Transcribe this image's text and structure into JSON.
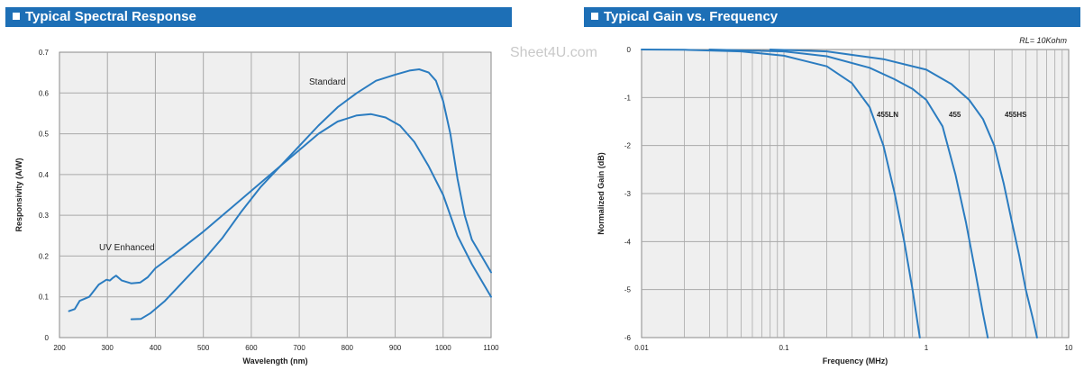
{
  "charts": [
    {
      "header": "Typical Spectral Response"
    },
    {
      "header": "Typical Gain vs. Frequency"
    }
  ],
  "watermark": "Sheet4U.com",
  "colors": {
    "header_bg": "#1d6fb6",
    "curve": "#2b7cc0",
    "plot_bg": "#efefef",
    "grid": "#a9a9a9"
  },
  "chart_data": [
    {
      "type": "line",
      "title": "Typical Spectral Response",
      "xlabel": "Wavelength (nm)",
      "ylabel": "Responsivity (A/W)",
      "xlim": [
        200,
        1100
      ],
      "ylim": [
        0,
        0.7
      ],
      "xticks": [
        200,
        300,
        400,
        500,
        600,
        700,
        800,
        900,
        1000,
        1100
      ],
      "yticks": [
        0,
        0.1,
        0.2,
        0.3,
        0.4,
        0.5,
        0.6,
        0.7
      ],
      "grid": true,
      "series": [
        {
          "name": "UV Enhanced",
          "points": [
            [
              220,
              0.065
            ],
            [
              232,
              0.07
            ],
            [
              242,
              0.09
            ],
            [
              262,
              0.1
            ],
            [
              282,
              0.13
            ],
            [
              298,
              0.142
            ],
            [
              305,
              0.14
            ],
            [
              312,
              0.147
            ],
            [
              318,
              0.152
            ],
            [
              330,
              0.14
            ],
            [
              350,
              0.133
            ],
            [
              368,
              0.135
            ],
            [
              384,
              0.148
            ],
            [
              400,
              0.17
            ],
            [
              440,
              0.205
            ],
            [
              500,
              0.26
            ],
            [
              560,
              0.32
            ],
            [
              620,
              0.38
            ],
            [
              660,
              0.42
            ],
            [
              700,
              0.46
            ],
            [
              740,
              0.5
            ],
            [
              780,
              0.53
            ],
            [
              820,
              0.545
            ],
            [
              850,
              0.548
            ],
            [
              880,
              0.54
            ],
            [
              910,
              0.52
            ],
            [
              940,
              0.48
            ],
            [
              970,
              0.42
            ],
            [
              1000,
              0.35
            ],
            [
              1030,
              0.25
            ],
            [
              1060,
              0.18
            ],
            [
              1090,
              0.12
            ],
            [
              1100,
              0.1
            ]
          ]
        },
        {
          "name": "Standard",
          "points": [
            [
              350,
              0.045
            ],
            [
              370,
              0.046
            ],
            [
              390,
              0.06
            ],
            [
              420,
              0.09
            ],
            [
              460,
              0.14
            ],
            [
              500,
              0.19
            ],
            [
              540,
              0.245
            ],
            [
              580,
              0.31
            ],
            [
              620,
              0.37
            ],
            [
              660,
              0.42
            ],
            [
              700,
              0.47
            ],
            [
              740,
              0.52
            ],
            [
              780,
              0.565
            ],
            [
              820,
              0.6
            ],
            [
              860,
              0.63
            ],
            [
              900,
              0.645
            ],
            [
              930,
              0.655
            ],
            [
              950,
              0.658
            ],
            [
              970,
              0.65
            ],
            [
              985,
              0.63
            ],
            [
              1000,
              0.58
            ],
            [
              1015,
              0.5
            ],
            [
              1030,
              0.39
            ],
            [
              1045,
              0.3
            ],
            [
              1060,
              0.24
            ],
            [
              1080,
              0.2
            ],
            [
              1100,
              0.16
            ]
          ]
        }
      ],
      "annotations": [
        "Standard",
        "UV Enhanced"
      ]
    },
    {
      "type": "line",
      "title": "Typical Gain vs. Frequency",
      "subtitle": "RL= 10Kohm",
      "xlabel": "Frequency (MHz)",
      "ylabel": "Normalized Gain (dB)",
      "xscale": "log",
      "xlim": [
        0.01,
        10
      ],
      "ylim": [
        -6,
        0
      ],
      "xticks": [
        0.01,
        0.1,
        1,
        10
      ],
      "xtick_labels": [
        "0.01",
        "0.1",
        "1",
        "10"
      ],
      "yticks": [
        0,
        -1,
        -2,
        -3,
        -4,
        -5,
        -6
      ],
      "grid": true,
      "series": [
        {
          "name": "455LN",
          "points": [
            [
              0.01,
              0
            ],
            [
              0.02,
              -0.005
            ],
            [
              0.05,
              -0.04
            ],
            [
              0.1,
              -0.13
            ],
            [
              0.2,
              -0.35
            ],
            [
              0.3,
              -0.7
            ],
            [
              0.4,
              -1.2
            ],
            [
              0.5,
              -2.0
            ],
            [
              0.6,
              -3.0
            ],
            [
              0.7,
              -4.0
            ],
            [
              0.8,
              -5.0
            ],
            [
              0.9,
              -6.0
            ]
          ]
        },
        {
          "name": "455",
          "points": [
            [
              0.03,
              0
            ],
            [
              0.1,
              -0.04
            ],
            [
              0.2,
              -0.14
            ],
            [
              0.4,
              -0.38
            ],
            [
              0.6,
              -0.62
            ],
            [
              0.8,
              -0.82
            ],
            [
              1.0,
              -1.05
            ],
            [
              1.3,
              -1.6
            ],
            [
              1.6,
              -2.6
            ],
            [
              1.9,
              -3.6
            ],
            [
              2.2,
              -4.6
            ],
            [
              2.5,
              -5.5
            ],
            [
              2.7,
              -6.0
            ]
          ]
        },
        {
          "name": "455HS",
          "points": [
            [
              0.08,
              0
            ],
            [
              0.2,
              -0.04
            ],
            [
              0.5,
              -0.2
            ],
            [
              1.0,
              -0.42
            ],
            [
              1.5,
              -0.72
            ],
            [
              2.0,
              -1.05
            ],
            [
              2.5,
              -1.45
            ],
            [
              3.0,
              -2.0
            ],
            [
              3.5,
              -2.8
            ],
            [
              4.0,
              -3.6
            ],
            [
              4.5,
              -4.3
            ],
            [
              5.0,
              -5.0
            ],
            [
              5.6,
              -5.6
            ],
            [
              6.0,
              -6.0
            ]
          ]
        }
      ],
      "annotations": [
        "455LN",
        "455",
        "455HS"
      ]
    }
  ]
}
